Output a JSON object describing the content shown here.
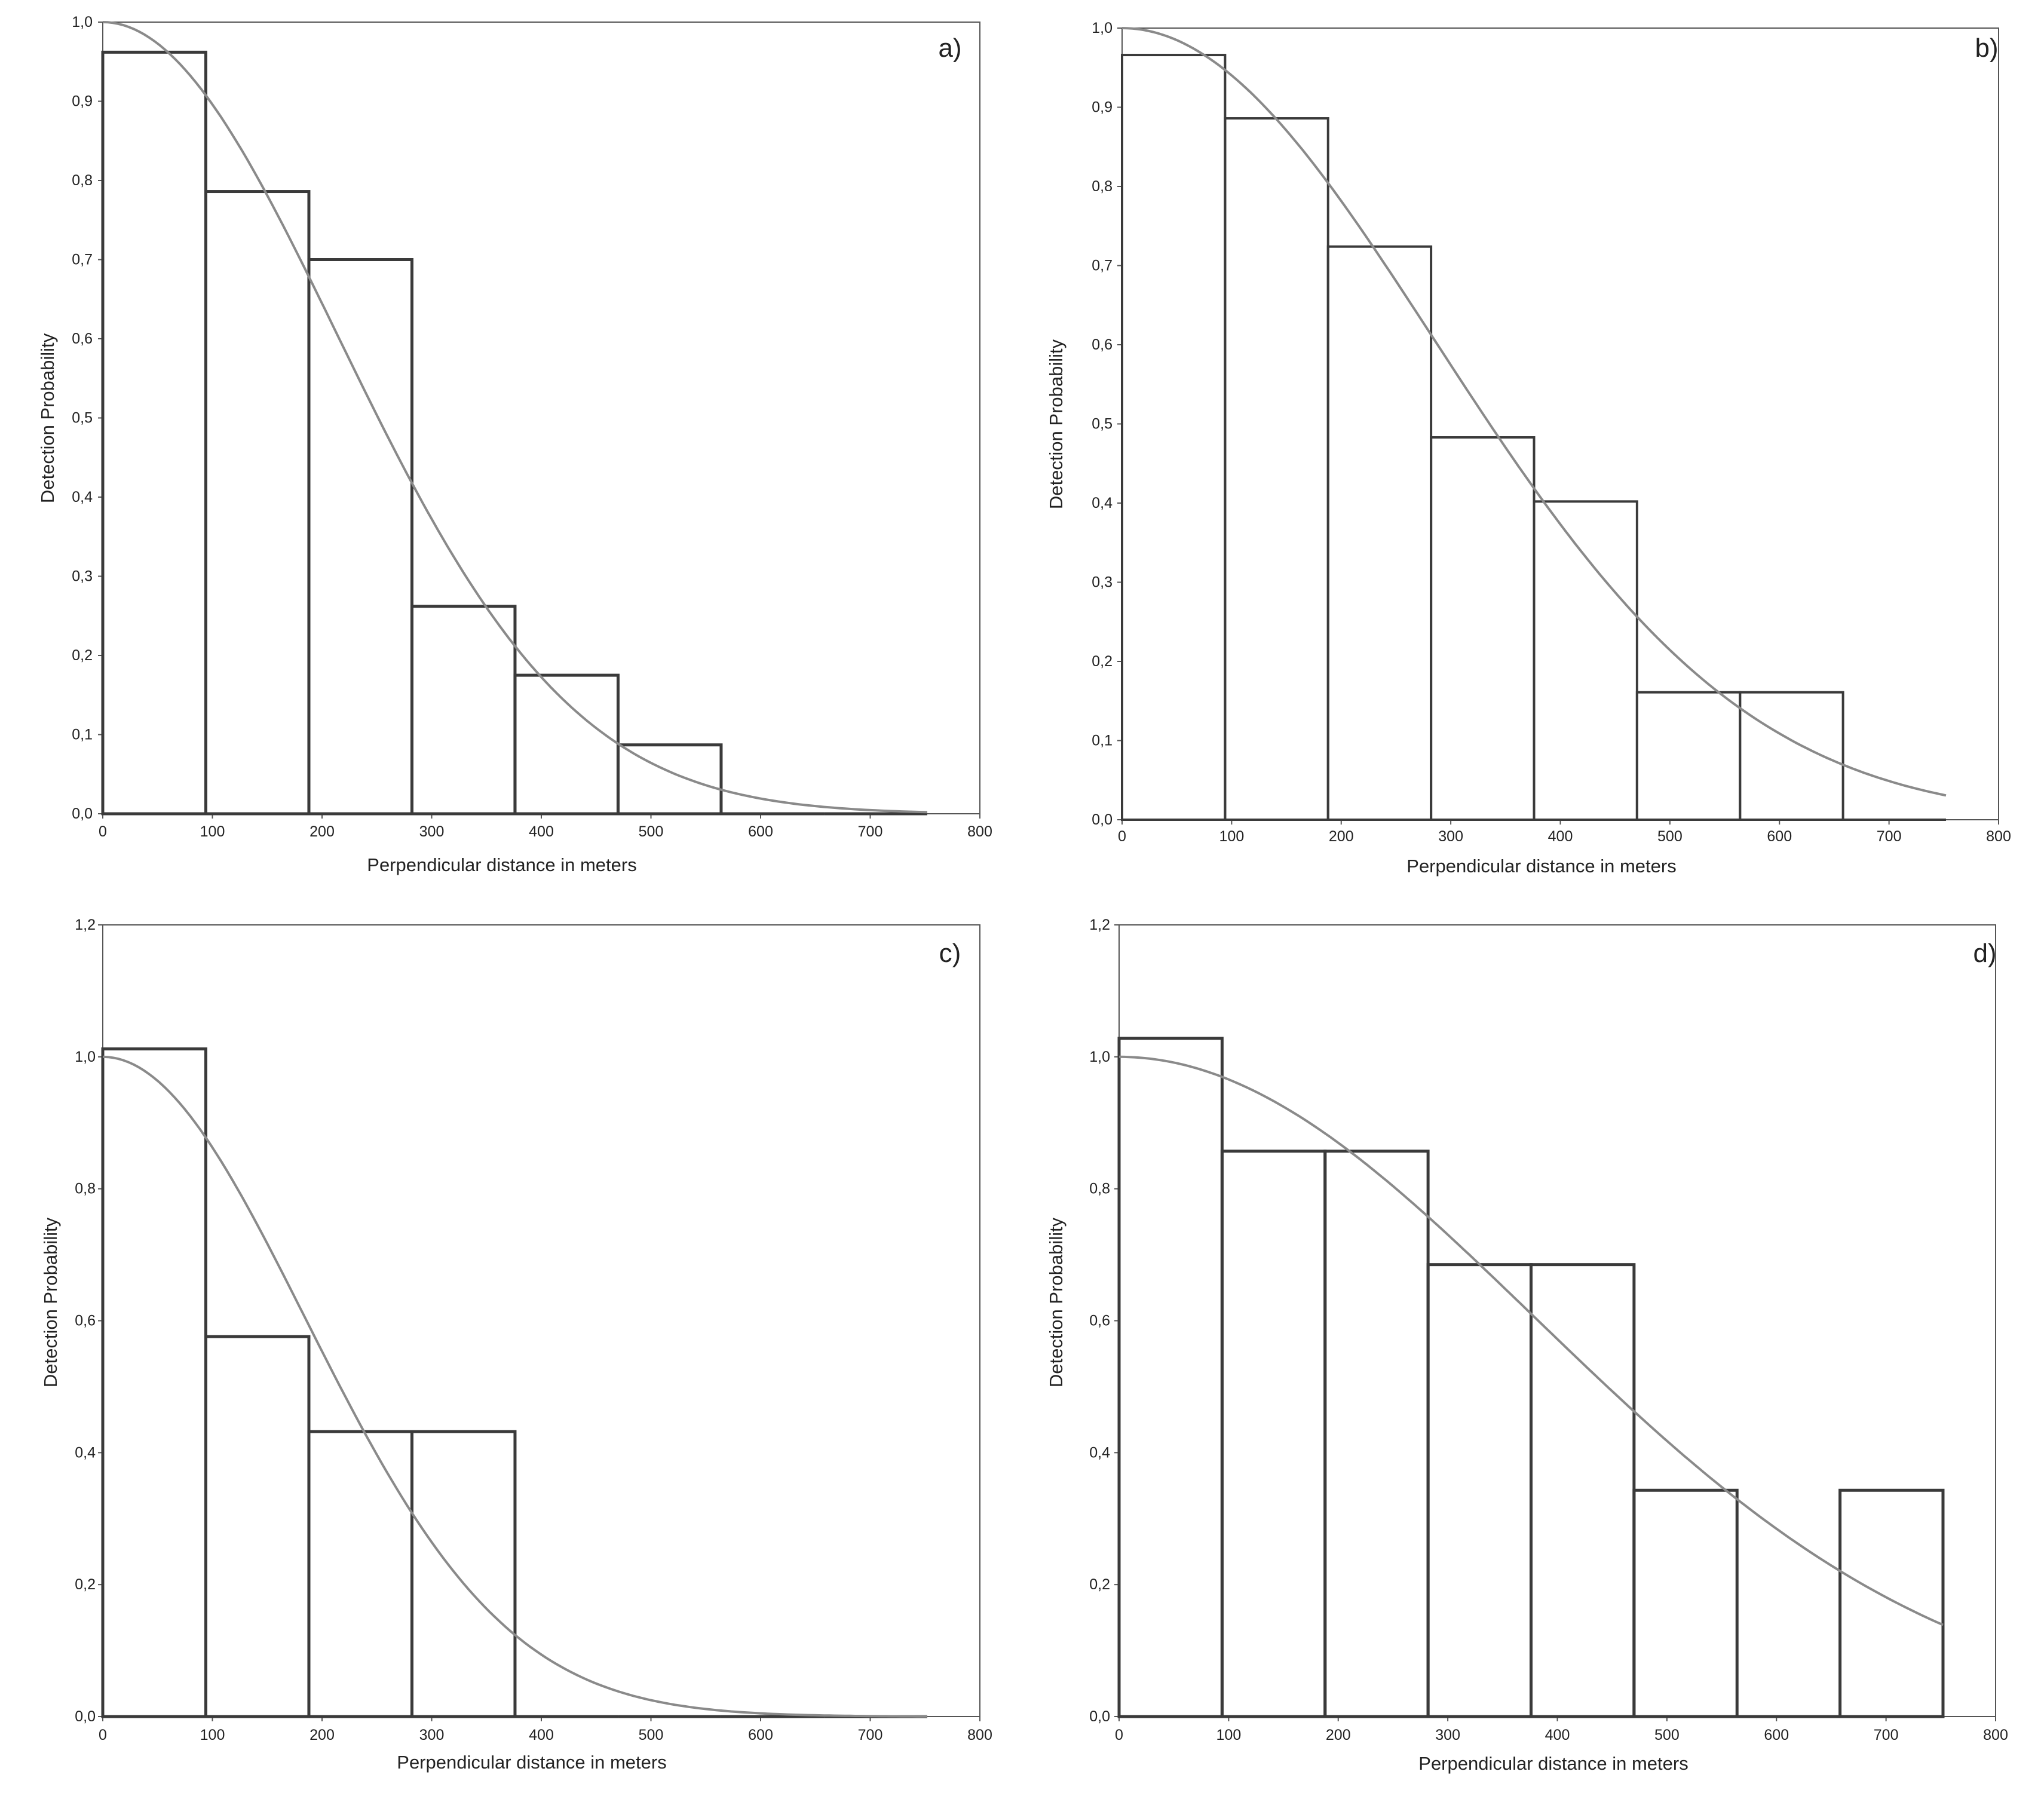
{
  "colors": {
    "bars": "#3a3a3a",
    "curve": "#8a8a8a",
    "axis": "#555555",
    "text": "#222222"
  },
  "charts": [
    {
      "panel": "a)",
      "type": "bar",
      "xlabel": "Perpendicular distance in meters",
      "ylabel": "Detection Probability",
      "xlim": [
        0,
        800
      ],
      "ylim": [
        0,
        1.0
      ],
      "xticks": [
        "0",
        "100",
        "200",
        "300",
        "400",
        "500",
        "600",
        "700",
        "800"
      ],
      "yticks": [
        "0,0",
        "0,1",
        "0,2",
        "0,3",
        "0,4",
        "0,5",
        "0,6",
        "0,7",
        "0,8",
        "0,9",
        "1,0"
      ],
      "bin_edges": [
        0,
        94,
        188,
        282,
        376,
        470,
        564,
        658,
        752
      ],
      "values": [
        0.962,
        0.786,
        0.7,
        0.262,
        0.175,
        0.087,
        0,
        0
      ],
      "curve_sigma": 213.4,
      "curve_xmax": 752
    },
    {
      "panel": "b)",
      "type": "bar",
      "xlabel": "Perpendicular distance in meters",
      "ylabel": "Detection Probability",
      "xlim": [
        0,
        800
      ],
      "ylim": [
        0,
        1.0
      ],
      "xticks": [
        "0",
        "100",
        "200",
        "300",
        "400",
        "500",
        "600",
        "700",
        "800"
      ],
      "yticks": [
        "0,0",
        "0,1",
        "0,2",
        "0,3",
        "0,4",
        "0,5",
        "0,6",
        "0,7",
        "0,8",
        "0,9",
        "1,0"
      ],
      "bin_edges": [
        0,
        94,
        188,
        282,
        376,
        470,
        564,
        658,
        752
      ],
      "values": [
        0.966,
        0.886,
        0.724,
        0.483,
        0.402,
        0.161,
        0.161,
        0
      ],
      "curve_sigma": 284.9,
      "curve_xmax": 752
    },
    {
      "panel": "c)",
      "type": "bar",
      "xlabel": "Perpendicular distance in meters",
      "ylabel": "Detection Probability",
      "xlim": [
        0,
        800
      ],
      "ylim": [
        0,
        1.2
      ],
      "xticks": [
        "0",
        "100",
        "200",
        "300",
        "400",
        "500",
        "600",
        "700",
        "800"
      ],
      "yticks": [
        "0,0",
        "0,2",
        "0,4",
        "0,6",
        "0,8",
        "1,0",
        "1,2"
      ],
      "bin_edges": [
        0,
        94,
        188,
        282,
        376,
        470,
        564,
        658,
        752
      ],
      "values": [
        1.012,
        0.576,
        0.432,
        0.432,
        0,
        0,
        0,
        0
      ],
      "curve_sigma": 183.9,
      "curve_xmax": 752
    },
    {
      "panel": "d)",
      "type": "bar",
      "xlabel": "Perpendicular distance in meters",
      "ylabel": "Detection Probability",
      "xlim": [
        0,
        800
      ],
      "ylim": [
        0,
        1.2
      ],
      "xticks": [
        "0",
        "100",
        "200",
        "300",
        "400",
        "500",
        "600",
        "700",
        "800"
      ],
      "yticks": [
        "0,0",
        "0,2",
        "0,4",
        "0,6",
        "0,8",
        "1,0",
        "1,2"
      ],
      "bin_edges": [
        0,
        94,
        188,
        282,
        376,
        470,
        564,
        658,
        752
      ],
      "values": [
        1.028,
        0.857,
        0.857,
        0.685,
        0.685,
        0.343,
        0,
        0.343
      ],
      "curve_sigma": 378.5,
      "curve_xmax": 752
    }
  ]
}
